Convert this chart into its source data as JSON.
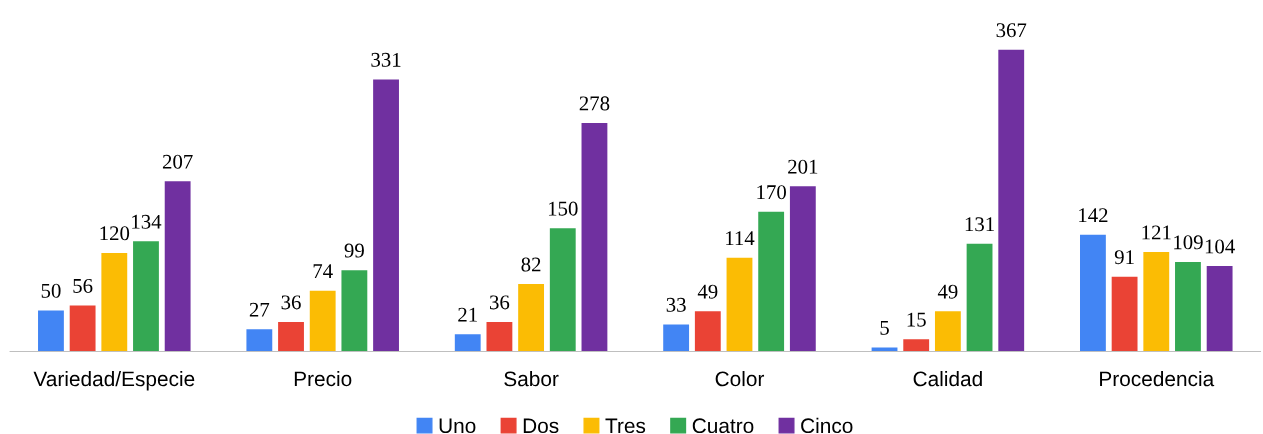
{
  "chart_data": {
    "type": "bar",
    "categories": [
      "Variedad/Especie",
      "Precio",
      "Sabor",
      "Color",
      "Calidad",
      "Procedencia"
    ],
    "series": [
      {
        "name": "Uno",
        "color": "#4285f4",
        "values": [
          50,
          27,
          21,
          33,
          5,
          142
        ]
      },
      {
        "name": "Dos",
        "color": "#ea4335",
        "values": [
          56,
          36,
          36,
          49,
          15,
          91
        ]
      },
      {
        "name": "Tres",
        "color": "#fbbc04",
        "values": [
          120,
          74,
          82,
          114,
          49,
          121
        ]
      },
      {
        "name": "Cuatro",
        "color": "#34a853",
        "values": [
          134,
          99,
          150,
          170,
          131,
          109
        ]
      },
      {
        "name": "Cinco",
        "color": "#7030a0",
        "values": [
          207,
          331,
          278,
          201,
          367,
          104
        ]
      }
    ],
    "data_labels": true,
    "legend": "bottom",
    "grid": false,
    "tick_labels": "x"
  }
}
